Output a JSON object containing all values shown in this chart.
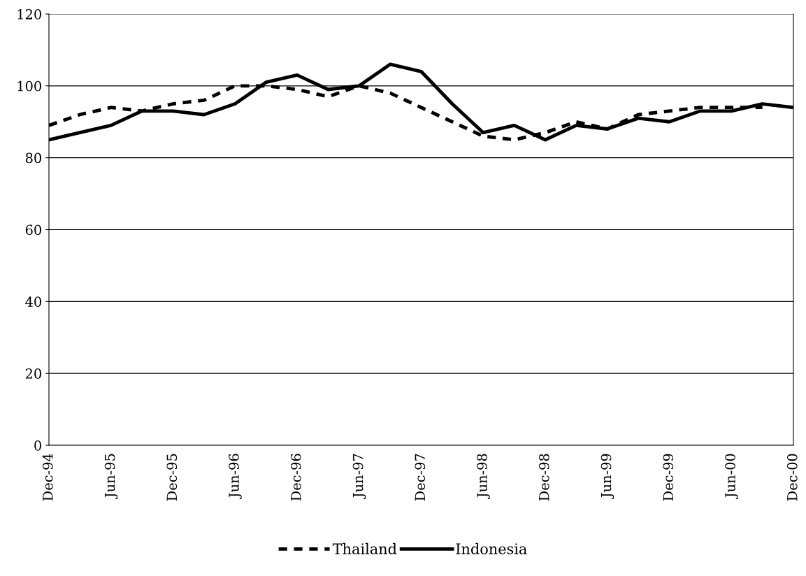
{
  "chart_data": {
    "type": "line",
    "categories": [
      "Dec-94",
      null,
      "Jun-95",
      null,
      "Dec-95",
      null,
      "Jun-96",
      null,
      "Dec-96",
      null,
      "Jun-97",
      null,
      "Dec-97",
      null,
      "Jun-98",
      null,
      "Dec-98",
      null,
      "Jun-99",
      null,
      "Dec-99",
      null,
      "Jun-00",
      null,
      "Dec-00"
    ],
    "series": [
      {
        "name": "Thailand",
        "color": "#000000",
        "line_style": "dashed",
        "values": [
          89,
          92,
          94,
          93,
          95,
          96,
          100,
          100,
          99,
          97,
          100,
          98,
          94,
          90,
          86,
          85,
          87,
          90,
          88,
          92,
          93,
          94,
          94,
          94,
          null
        ]
      },
      {
        "name": "Indonesia",
        "color": "#000000",
        "line_style": "solid",
        "values": [
          85,
          87,
          89,
          93,
          93,
          92,
          95,
          101,
          103,
          99,
          100,
          106,
          104,
          95,
          87,
          89,
          85,
          89,
          88,
          91,
          90,
          93,
          93,
          95,
          94
        ]
      }
    ],
    "ylim": [
      0,
      120
    ],
    "yticks": [
      0,
      20,
      40,
      60,
      80,
      100,
      120
    ],
    "grid": "y",
    "legend": "bottom",
    "marker": "none"
  }
}
